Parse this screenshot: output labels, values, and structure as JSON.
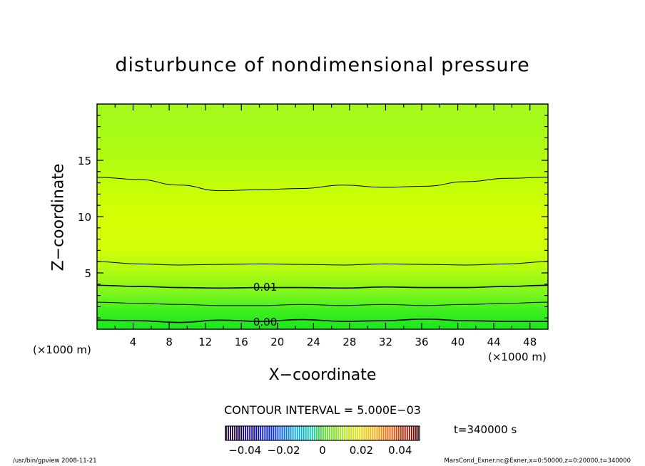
{
  "chart_data": {
    "type": "heatmap",
    "title": "disturbunce of nondimensional pressure",
    "xlabel": "X−coordinate",
    "ylabel": "Z−coordinate",
    "x_unit": "(×1000 m)",
    "z_unit": "(×1000 m)",
    "xlim": [
      0,
      50
    ],
    "ylim": [
      0,
      20
    ],
    "x_ticks": [
      "4",
      "8",
      "12",
      "16",
      "20",
      "24",
      "28",
      "32",
      "36",
      "40",
      "44",
      "48"
    ],
    "x_tick_values": [
      4,
      8,
      12,
      16,
      20,
      24,
      28,
      32,
      36,
      40,
      44,
      48
    ],
    "y_ticks": [
      "5",
      "10",
      "15"
    ],
    "y_tick_values": [
      5,
      10,
      15
    ],
    "contour_interval_label": "CONTOUR INTERVAL = 5.000E−03",
    "contour_labels": [
      {
        "text": "0.01",
        "x": 17.0,
        "z": 3.8
      },
      {
        "text": "0.00",
        "x": 17.0,
        "z": 0.7
      }
    ],
    "contour_levels": [
      {
        "z": [
          0.8,
          0.75,
          0.6,
          0.8,
          0.7,
          0.85,
          0.7,
          0.75,
          0.9,
          0.75,
          0.7,
          0.7
        ],
        "width": 1.6
      },
      {
        "z": [
          2.4,
          2.3,
          2.2,
          2.1,
          2.1,
          2.2,
          2.1,
          2.2,
          2.1,
          2.2,
          2.3,
          2.4
        ],
        "width": 1
      },
      {
        "z": [
          3.9,
          3.8,
          3.7,
          3.65,
          3.7,
          3.7,
          3.65,
          3.75,
          3.7,
          3.7,
          3.8,
          3.9
        ],
        "width": 1.6
      },
      {
        "z": [
          6.0,
          5.8,
          5.7,
          5.75,
          5.8,
          5.75,
          5.7,
          5.8,
          5.75,
          5.7,
          5.8,
          6.0
        ],
        "width": 1
      },
      {
        "z": [
          13.5,
          13.3,
          12.8,
          12.3,
          12.4,
          12.5,
          12.8,
          12.6,
          12.7,
          13.1,
          13.4,
          13.5
        ],
        "width": 1
      }
    ],
    "colorbar": {
      "tick_labels": [
        "−0.04",
        "−0.02",
        "0",
        "0.02",
        "0.04"
      ],
      "tick_values": [
        -0.04,
        -0.02,
        0,
        0.02,
        0.04
      ],
      "range": [
        -0.05,
        0.05
      ]
    },
    "time_label": "t=340000 s"
  },
  "footer": {
    "left": "/usr/bin/gpview   2008-11-21",
    "right": "MarsCond_Exner.nc@Exner,x=0:50000,z=0:20000,t=340000"
  }
}
